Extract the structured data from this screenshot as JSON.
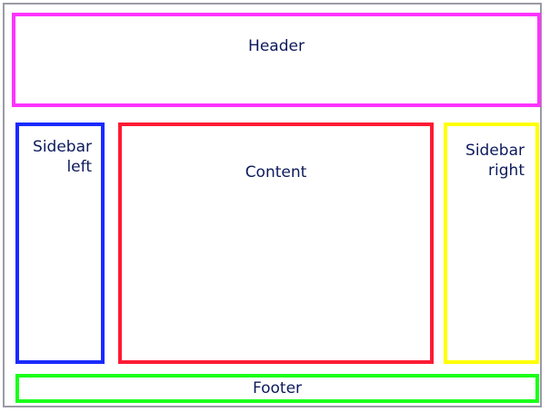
{
  "header": {
    "label": "Header",
    "color": "#ff33ff"
  },
  "sidebar_left": {
    "label": "Sidebar\nleft",
    "color": "#1a2aff"
  },
  "content": {
    "label": "Content",
    "color": "#ff1a33"
  },
  "sidebar_right": {
    "label": "Sidebar\nright",
    "color": "#ffff00"
  },
  "footer": {
    "label": "Footer",
    "color": "#1aff1a"
  },
  "text_color": "#0d1a5c"
}
